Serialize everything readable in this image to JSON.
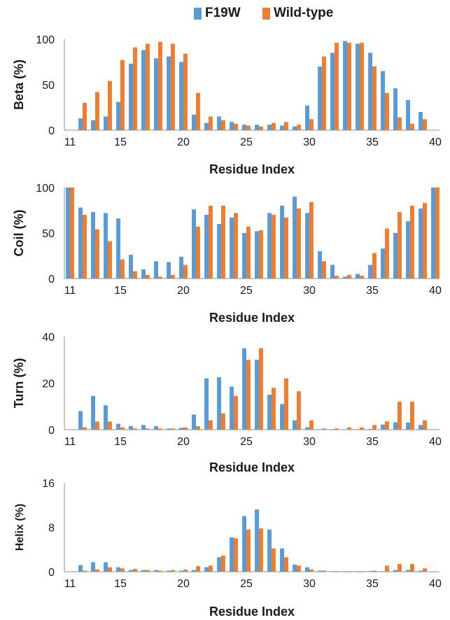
{
  "legend": {
    "items": [
      {
        "label": "F19W",
        "color": "#5B9BD5"
      },
      {
        "label": "Wild-type",
        "color": "#ED7D31"
      }
    ]
  },
  "chart_data": [
    {
      "type": "bar",
      "ylabel": "Beta (%)",
      "xlabel": "Residue Index",
      "ylim": [
        0,
        100
      ],
      "yticks": [
        "0",
        "50",
        "100"
      ],
      "xticks": [
        "11",
        "15",
        "20",
        "25",
        "30",
        "35",
        "40"
      ],
      "categories": [
        11,
        12,
        13,
        14,
        15,
        16,
        17,
        18,
        19,
        20,
        21,
        22,
        23,
        24,
        25,
        26,
        27,
        28,
        29,
        30,
        31,
        32,
        33,
        34,
        35,
        36,
        37,
        38,
        39,
        40
      ],
      "series": [
        {
          "name": "F19W",
          "values": [
            0,
            13,
            11,
            15,
            31,
            73,
            88,
            79,
            81,
            75,
            17,
            8,
            15,
            9,
            6,
            6,
            6,
            5,
            4,
            27,
            70,
            85,
            98,
            95,
            85,
            65,
            46,
            33,
            20,
            0
          ]
        },
        {
          "name": "Wild-type",
          "values": [
            0,
            30,
            42,
            54,
            77,
            91,
            95,
            97,
            95,
            84,
            41,
            15,
            11,
            7,
            5,
            4,
            8,
            9,
            6,
            12,
            81,
            96,
            96,
            96,
            70,
            41,
            14,
            7,
            12,
            0
          ]
        }
      ]
    },
    {
      "type": "bar",
      "ylabel": "Coil (%)",
      "xlabel": "Residue Index",
      "ylim": [
        0,
        100
      ],
      "yticks": [
        "0",
        "50",
        "100"
      ],
      "xticks": [
        "11",
        "15",
        "20",
        "25",
        "30",
        "35",
        "40"
      ],
      "categories": [
        11,
        12,
        13,
        14,
        15,
        16,
        17,
        18,
        19,
        20,
        21,
        22,
        23,
        24,
        25,
        26,
        27,
        28,
        29,
        30,
        31,
        32,
        33,
        34,
        35,
        36,
        37,
        38,
        39,
        40
      ],
      "series": [
        {
          "name": "F19W",
          "values": [
            100,
            78,
            73,
            72,
            66,
            26,
            10,
            19,
            18,
            24,
            76,
            70,
            60,
            67,
            50,
            52,
            72,
            80,
            90,
            72,
            30,
            15,
            2,
            5,
            15,
            33,
            50,
            63,
            77,
            100
          ]
        },
        {
          "name": "Wild-type",
          "values": [
            100,
            70,
            54,
            41,
            21,
            8,
            4,
            2,
            4,
            15,
            57,
            80,
            80,
            72,
            57,
            53,
            70,
            67,
            77,
            84,
            19,
            3,
            4,
            3,
            28,
            55,
            73,
            80,
            83,
            100
          ]
        }
      ]
    },
    {
      "type": "bar",
      "ylabel": "Turn (%)",
      "xlabel": "Residue Index",
      "ylim": [
        0,
        40
      ],
      "yticks": [
        "0",
        "20",
        "40"
      ],
      "xticks": [
        "11",
        "15",
        "20",
        "25",
        "30",
        "35",
        "40"
      ],
      "categories": [
        11,
        12,
        13,
        14,
        15,
        16,
        17,
        18,
        19,
        20,
        21,
        22,
        23,
        24,
        25,
        26,
        27,
        28,
        29,
        30,
        31,
        32,
        33,
        34,
        35,
        36,
        37,
        38,
        39,
        40
      ],
      "series": [
        {
          "name": "F19W",
          "values": [
            0,
            8,
            14.5,
            10.5,
            2.5,
            1.5,
            2,
            1.5,
            0.5,
            0.8,
            6.5,
            22,
            22.5,
            18.5,
            35,
            30,
            15,
            11,
            4,
            1,
            0.2,
            0.2,
            0.2,
            0.2,
            0.3,
            2.2,
            3.2,
            3,
            2,
            0
          ]
        },
        {
          "name": "Wild-type",
          "values": [
            0,
            1,
            3.5,
            3.5,
            1,
            0.5,
            0.5,
            0.5,
            0.5,
            1,
            1.5,
            4,
            7,
            14.5,
            30,
            35,
            18,
            22,
            16.5,
            4,
            0.5,
            0.5,
            1,
            1,
            2,
            3.5,
            12,
            12,
            4,
            0
          ]
        }
      ]
    },
    {
      "type": "bar",
      "ylabel": "Helix (%)",
      "xlabel": "Residue Index",
      "ylim": [
        0,
        16
      ],
      "yticks": [
        "0",
        "8",
        "16"
      ],
      "xticks": [
        "11",
        "15",
        "20",
        "25",
        "30",
        "35",
        "40"
      ],
      "categories": [
        11,
        12,
        13,
        14,
        15,
        16,
        17,
        18,
        19,
        20,
        21,
        22,
        23,
        24,
        25,
        26,
        27,
        28,
        29,
        30,
        31,
        32,
        33,
        34,
        35,
        36,
        37,
        38,
        39,
        40
      ],
      "series": [
        {
          "name": "F19W",
          "values": [
            0,
            1.2,
            1.7,
            1.7,
            0.8,
            0.3,
            0.3,
            0.3,
            0.2,
            0.2,
            0.3,
            0.8,
            2.6,
            6.2,
            10,
            11.2,
            7.6,
            4.2,
            1.3,
            0.8,
            0.2,
            0.1,
            0.1,
            0.1,
            0.1,
            0.1,
            0.3,
            0.3,
            0.2,
            0
          ]
        },
        {
          "name": "Wild-type",
          "values": [
            0,
            0.2,
            0.4,
            0.8,
            0.6,
            0.5,
            0.3,
            0.2,
            0.3,
            0.4,
            1,
            1.1,
            2.9,
            6,
            7.6,
            7.8,
            4.2,
            2.6,
            1.1,
            0.4,
            0.2,
            0.1,
            0.1,
            0.1,
            0.2,
            1.1,
            1.4,
            1.4,
            0.6,
            0
          ]
        }
      ]
    }
  ]
}
